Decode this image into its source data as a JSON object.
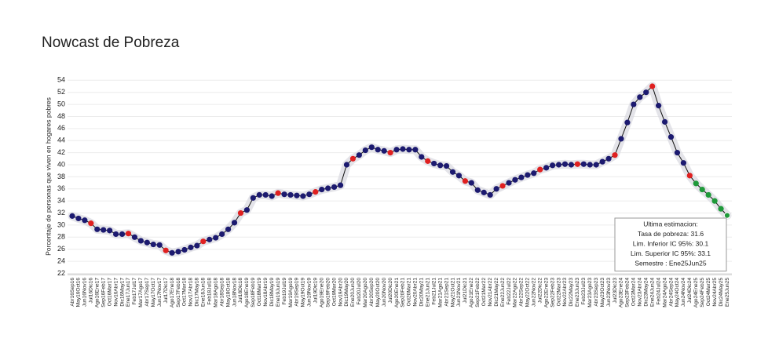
{
  "chart_data": {
    "type": "line",
    "title": "Nowcast de Pobreza",
    "y_label": "Porcentaje de personas que viven en hogares pobres",
    "categories": [
      "Abr16Sep16",
      "May16Oct16",
      "Jun16Nov16",
      "Jul16Dic16",
      "Ago16Ene17",
      "Sep16Feb17",
      "Oct16Mar17",
      "Nov16Abr17",
      "Dic16May17",
      "Ene17Jun17",
      "Feb17Jul17",
      "Mar17Ago17",
      "Abr17Sep17",
      "May17Oct17",
      "Jun17Nov17",
      "Jul17Dic17",
      "Ago17Ene18",
      "Sep17Feb18",
      "Oct17Mar18",
      "Nov17Abr18",
      "Dic17May18",
      "Ene18Jun18",
      "Feb18Jul18",
      "Mar18Ago18",
      "Abr18Sep18",
      "May18Oct18",
      "Jun18Nov18",
      "Jul18Dic18",
      "Ago18Ene19",
      "Sep18Feb19",
      "Oct18Mar19",
      "Nov18Abr19",
      "Dic18May19",
      "Ene19Jun19",
      "Feb19Jul19",
      "Mar19Ago19",
      "Abr19Sep19",
      "May19Oct19",
      "Jun19Nov19",
      "Jul19Dic19",
      "Ago19Ene20",
      "Sep19Feb20",
      "Oct19Mar20",
      "Nov19Abr20",
      "Dic19May20",
      "Ene20Jun20",
      "Feb20Jul20",
      "Mar20Ago20",
      "Abr20Sep20",
      "May20Oct20",
      "Jun20Nov20",
      "Jul20Dic20",
      "Ago20Ene21",
      "Sep20Feb21",
      "Oct20Mar21",
      "Nov20Abr21",
      "Dic20May21",
      "Ene21Jun21",
      "Feb21Jul21",
      "Mar21Ago21",
      "Abr21Sep21",
      "May21Oct21",
      "Jun21Nov21",
      "Jul21Dic21",
      "Ago21Ene22",
      "Sep21Feb22",
      "Oct21Mar22",
      "Nov21Abr22",
      "Dic21May22",
      "Ene22Jun22",
      "Feb22Jul22",
      "Mar22Ago22",
      "Abr22Sep22",
      "May22Oct22",
      "Jun22Nov22",
      "Jul22Dic22",
      "Ago22Ene23",
      "Sep22Feb23",
      "Oct22Mar23",
      "Nov22Abr23",
      "Dic22May23",
      "Ene23Jun23",
      "Feb23Jul23",
      "Mar23Ago23",
      "Abr23Sep23",
      "May23Oct23",
      "Jun23Nov23",
      "Jul23Dic23",
      "Ago23Ene24",
      "Sep23Feb24",
      "Oct23Mar24",
      "Nov23Abr24",
      "Dic23May24",
      "Ene24Jun24",
      "Feb24Jul24",
      "Mar24Ago24",
      "Abr24Sep24",
      "May24Oct24",
      "Jun24Nov24",
      "Jul24Dic24",
      "Ago24Ene25",
      "Sep24Feb25",
      "Oct24Mar25",
      "Nov24Abr25",
      "Dic24May25",
      "Ene25Jun25"
    ],
    "values": [
      31.5,
      31.1,
      30.8,
      30.3,
      29.3,
      29.2,
      29.1,
      28.5,
      28.5,
      28.6,
      28.0,
      27.4,
      27.1,
      26.8,
      26.7,
      25.8,
      25.4,
      25.6,
      25.9,
      26.3,
      26.6,
      27.3,
      27.6,
      27.9,
      28.5,
      29.3,
      30.4,
      32.0,
      32.5,
      34.5,
      35.0,
      35.0,
      34.8,
      35.3,
      35.1,
      35.0,
      34.9,
      34.8,
      35.1,
      35.5,
      35.9,
      36.1,
      36.3,
      36.6,
      40.0,
      41.0,
      41.6,
      42.4,
      42.9,
      42.5,
      42.3,
      42.0,
      42.5,
      42.6,
      42.5,
      42.5,
      41.3,
      40.6,
      40.2,
      39.9,
      39.8,
      38.8,
      38.2,
      37.3,
      37.0,
      35.8,
      35.4,
      35.0,
      36.0,
      36.5,
      37.0,
      37.5,
      37.9,
      38.3,
      38.6,
      39.2,
      39.5,
      39.9,
      40.0,
      40.1,
      40.0,
      40.1,
      40.1,
      40.0,
      40.0,
      40.5,
      41.0,
      41.6,
      44.3,
      47.0,
      50.0,
      51.2,
      52.0,
      53.0,
      49.8,
      47.1,
      44.6,
      42.0,
      40.3,
      38.2,
      36.9,
      35.9,
      35.0,
      34.0,
      32.7,
      31.6
    ],
    "line_color": "#111111",
    "band_color": "#d8d8e0",
    "marker_colors": [
      "#1c1a70",
      "#1c1a70",
      "#1c1a70",
      "#e02020",
      "#1c1a70",
      "#1c1a70",
      "#1c1a70",
      "#1c1a70",
      "#1c1a70",
      "#e02020",
      "#1c1a70",
      "#1c1a70",
      "#1c1a70",
      "#1c1a70",
      "#1c1a70",
      "#e02020",
      "#1c1a70",
      "#1c1a70",
      "#1c1a70",
      "#1c1a70",
      "#1c1a70",
      "#e02020",
      "#1c1a70",
      "#1c1a70",
      "#1c1a70",
      "#1c1a70",
      "#1c1a70",
      "#e02020",
      "#1c1a70",
      "#1c1a70",
      "#1c1a70",
      "#1c1a70",
      "#1c1a70",
      "#e02020",
      "#1c1a70",
      "#1c1a70",
      "#1c1a70",
      "#1c1a70",
      "#1c1a70",
      "#e02020",
      "#1c1a70",
      "#1c1a70",
      "#1c1a70",
      "#1c1a70",
      "#1c1a70",
      "#e02020",
      "#1c1a70",
      "#1c1a70",
      "#1c1a70",
      "#1c1a70",
      "#1c1a70",
      "#e02020",
      "#1c1a70",
      "#1c1a70",
      "#1c1a70",
      "#1c1a70",
      "#1c1a70",
      "#e02020",
      "#1c1a70",
      "#1c1a70",
      "#1c1a70",
      "#1c1a70",
      "#1c1a70",
      "#e02020",
      "#1c1a70",
      "#1c1a70",
      "#1c1a70",
      "#1c1a70",
      "#1c1a70",
      "#e02020",
      "#1c1a70",
      "#1c1a70",
      "#1c1a70",
      "#1c1a70",
      "#1c1a70",
      "#e02020",
      "#1c1a70",
      "#1c1a70",
      "#1c1a70",
      "#1c1a70",
      "#1c1a70",
      "#e02020",
      "#1c1a70",
      "#1c1a70",
      "#1c1a70",
      "#1c1a70",
      "#1c1a70",
      "#e02020",
      "#1c1a70",
      "#1c1a70",
      "#1c1a70",
      "#1c1a70",
      "#1c1a70",
      "#e02020",
      "#1c1a70",
      "#1c1a70",
      "#1c1a70",
      "#1c1a70",
      "#1c1a70",
      "#e02020",
      "#1f9a3a",
      "#1f9a3a",
      "#1f9a3a",
      "#1f9a3a",
      "#1f9a3a",
      "#1f9a3a"
    ],
    "ylim": [
      21.8,
      54.3
    ],
    "yticks": [
      22,
      24,
      26,
      28,
      30,
      32,
      34,
      36,
      38,
      40,
      42,
      44,
      46,
      48,
      50,
      52,
      54
    ],
    "grid": true,
    "annotation": [
      "Ultima estimacion:",
      "Tasa de pobreza:  31.6",
      "Lim. Inferior IC 95%:  30.1",
      "Lim. Superior IC 95%:  33.1",
      "Semestre : Ene25Jun25"
    ]
  }
}
